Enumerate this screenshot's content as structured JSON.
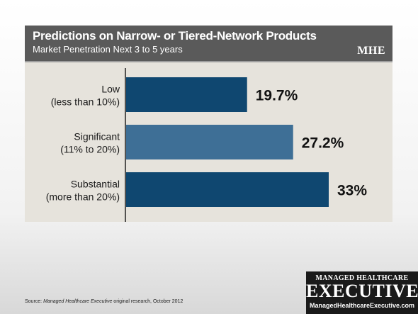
{
  "header": {
    "title": "Predictions on Narrow- or Tiered-Network Products",
    "subtitle": "Market Penetration Next 3 to 5 years",
    "logo_text": "MHE"
  },
  "chart_data": {
    "type": "bar",
    "orientation": "horizontal",
    "title": "Predictions on Narrow- or Tiered-Network Products",
    "subtitle": "Market Penetration Next 3 to 5 years",
    "categories": [
      [
        "Low",
        "(less than 10%)"
      ],
      [
        "Significant",
        "(11% to 20%)"
      ],
      [
        "Substantial",
        "(more than 20%)"
      ]
    ],
    "values": [
      19.7,
      27.2,
      33
    ],
    "value_labels": [
      "19.7%",
      "27.2%",
      "33%"
    ],
    "bar_colors": [
      "#0f4770",
      "#3e6f96",
      "#0f4770"
    ],
    "xlim": [
      0,
      40
    ],
    "grid": false,
    "legend": "none"
  },
  "footer": {
    "source_prefix": "Source: ",
    "source_italic": "Managed Healthcare Executive",
    "source_suffix": " original research, October 2012"
  },
  "brand": {
    "top": "MANAGED HEALTHCARE",
    "main": "EXECUTIVE",
    "url": "ManagedHealthcareExecutive.com"
  },
  "colors": {
    "header_bg": "#5a5a5a",
    "panel_bg": "#e6e3dc",
    "bar_dark": "#0f4770",
    "bar_light": "#3e6f96"
  }
}
